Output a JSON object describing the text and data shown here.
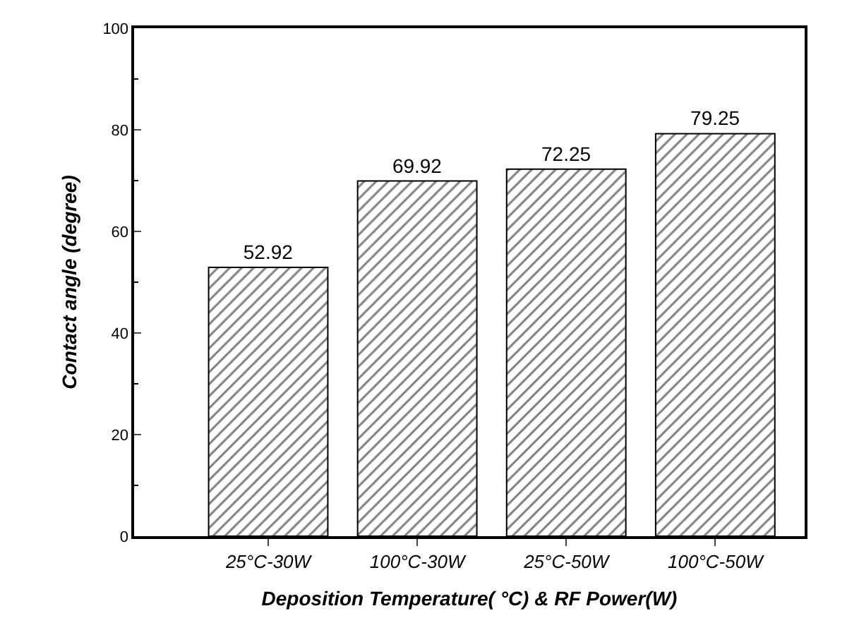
{
  "chart_data": {
    "type": "bar",
    "categories": [
      "25°C-30W",
      "100°C-30W",
      "25°C-50W",
      "100°C-50W"
    ],
    "values": [
      52.92,
      69.92,
      72.25,
      79.25
    ],
    "color": "#000000",
    "xlabel": "Deposition Temperature( °C) & RF Power(W)",
    "ylabel": "Contact angle (degree)",
    "ylim": [
      0,
      100
    ],
    "yticks": [
      0,
      20,
      40,
      60,
      80,
      100
    ],
    "data_labels": true
  }
}
